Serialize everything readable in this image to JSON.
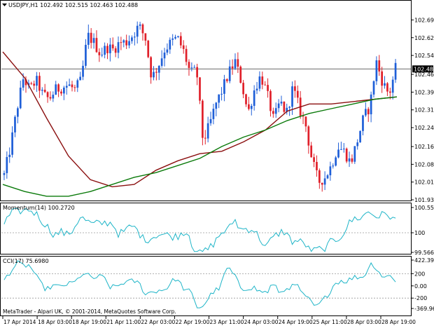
{
  "window": {
    "symbol_header": "USDJPY,H1  102.492 102.515 102.463 102.488",
    "copyright": "MetaTrader - Alpari UK, © 2001-2014, MetaQuotes Software Corp."
  },
  "colors": {
    "bull": "#1f5fd8",
    "bear": "#e0202a",
    "ma_fast": "#8b1010",
    "ma_slow": "#0a7a0a",
    "momentum": "#1fb5c8",
    "cci": "#1fb5c8",
    "grid": "#999999",
    "last_price_line": "#555555"
  },
  "chart_data": [
    {
      "type": "candlestick",
      "name": "USDJPY,H1",
      "price_axis": [
        "102.695",
        "102.620",
        "102.545",
        "102.465",
        "102.390",
        "102.315",
        "102.240",
        "102.160",
        "102.085",
        "102.010",
        "101.935"
      ],
      "ylim": [
        101.935,
        102.72
      ],
      "last_price": "102.488",
      "time_axis": [
        "17 Apr 2014",
        "18 Apr 03:00",
        "18 Apr 19:00",
        "21 Apr 11:00",
        "22 Apr 03:00",
        "22 Apr 19:00",
        "23 Apr 11:00",
        "24 Apr 03:00",
        "24 Apr 19:00",
        "25 Apr 11:00",
        "28 Apr 03:00",
        "28 Apr 19:00"
      ],
      "close_path": [
        102.04,
        102.16,
        102.32,
        102.45,
        102.4,
        102.44,
        102.38,
        102.36,
        102.4,
        102.41,
        102.42,
        102.4,
        102.44,
        102.63,
        102.6,
        102.55,
        102.58,
        102.57,
        102.6,
        102.6,
        102.63,
        102.67,
        102.62,
        102.45,
        102.5,
        102.57,
        102.6,
        102.62,
        102.56,
        102.47,
        102.48,
        102.18,
        102.25,
        102.34,
        102.4,
        102.47,
        102.52,
        102.43,
        102.3,
        102.4,
        102.46,
        102.38,
        102.27,
        102.35,
        102.3,
        102.41,
        102.32,
        102.25,
        102.1,
        102.01,
        102.03,
        102.08,
        102.16,
        102.14,
        102.09,
        102.18,
        102.28,
        102.33,
        102.52,
        102.43,
        102.38,
        102.49
      ],
      "moving_averages": [
        {
          "values": [
            102.56,
            102.45,
            102.28,
            102.12,
            102.02,
            101.99,
            102.0,
            102.06,
            102.1,
            102.13,
            102.14,
            102.18,
            102.23,
            102.31,
            102.34,
            102.34,
            102.35,
            102.36,
            102.37
          ]
        },
        {
          "values": [
            102.0,
            101.97,
            101.95,
            101.95,
            101.97,
            102.0,
            102.03,
            102.05,
            102.08,
            102.11,
            102.16,
            102.2,
            102.23,
            102.27,
            102.3,
            102.32,
            102.34,
            102.36,
            102.37
          ]
        }
      ]
    },
    {
      "type": "line",
      "name": "Momentum(14) 100.2720",
      "axis": [
        "100.5575",
        "100",
        "99.5664"
      ],
      "ylim": [
        99.5664,
        100.5575
      ]
    },
    {
      "type": "line",
      "name": "CCI(17) 75.6980",
      "axis": [
        "422.3953",
        "200",
        "0.00",
        "-200",
        "-369.9692"
      ],
      "ylim": [
        -369.9692,
        422.3953
      ]
    }
  ]
}
